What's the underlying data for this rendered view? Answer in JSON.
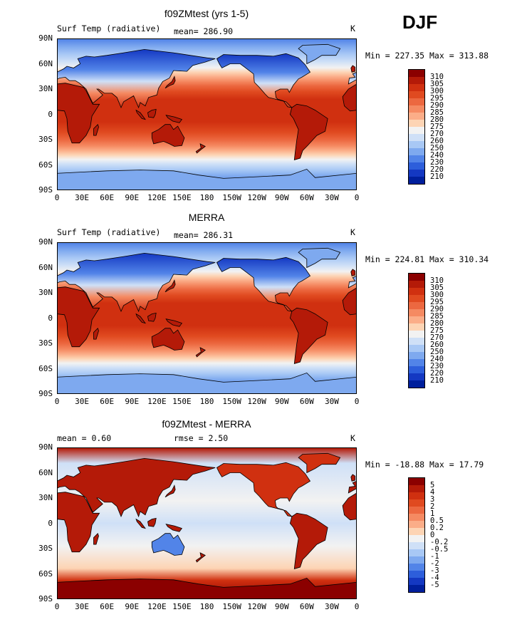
{
  "season": "DJF",
  "units": "K",
  "panels": [
    {
      "title": "f09ZMtest (yrs 1-5)",
      "left_label": "Surf Temp (radiative)",
      "center_label": "mean= 286.90",
      "right_label": "K",
      "min_max": "Min = 227.35 Max = 313.88",
      "colorbar": "temperature"
    },
    {
      "title": "MERRA",
      "left_label": "Surf Temp (radiative)",
      "center_label": "mean= 286.31",
      "right_label": "K",
      "min_max": "Min = 224.81 Max = 310.34",
      "colorbar": "temperature"
    },
    {
      "title": "f09ZMtest - MERRA",
      "left_label": "mean =    0.60",
      "center_label": "rmse =    2.50",
      "right_label": "K",
      "min_max": "Min = -18.88 Max =  17.79",
      "colorbar": "difference"
    }
  ],
  "chart_data": {
    "type": "heatmap",
    "projection": "cylindrical equidistant, 0 to 360 longitude",
    "x_tick_labels": [
      "0",
      "30E",
      "60E",
      "90E",
      "120E",
      "150E",
      "180",
      "150W",
      "120W",
      "90W",
      "60W",
      "30W",
      "0"
    ],
    "y_tick_labels": [
      "90N",
      "60N",
      "30N",
      "0",
      "30S",
      "60S",
      "90S"
    ],
    "xlim": [
      0,
      360
    ],
    "ylim": [
      -90,
      90
    ],
    "colorbars": {
      "temperature": {
        "labels": [
          "310",
          "305",
          "300",
          "295",
          "290",
          "285",
          "280",
          "275",
          "270",
          "260",
          "250",
          "240",
          "230",
          "220",
          "210"
        ],
        "colors": [
          "#8b0000",
          "#b41a08",
          "#d03010",
          "#e04a20",
          "#ec6840",
          "#f58a62",
          "#fbad88",
          "#fdd4b4",
          "#f2f2f2",
          "#cfe0f7",
          "#a8c8f5",
          "#7ea9ef",
          "#5284e8",
          "#2d5edb",
          "#1438c2",
          "#001f9c"
        ]
      },
      "difference": {
        "labels": [
          "5",
          "4",
          "3",
          "2",
          "1",
          "0.5",
          "0.2",
          "0",
          "-0.2",
          "-0.5",
          "-1",
          "-2",
          "-3",
          "-4",
          "-5"
        ],
        "colors": [
          "#8b0000",
          "#b41a08",
          "#d03010",
          "#e04a20",
          "#ec6840",
          "#f58a62",
          "#fbad88",
          "#fdd4b4",
          "#f2f2f2",
          "#cfe0f7",
          "#a8c8f5",
          "#7ea9ef",
          "#5284e8",
          "#2d5edb",
          "#1438c2",
          "#001f9c"
        ]
      }
    }
  }
}
